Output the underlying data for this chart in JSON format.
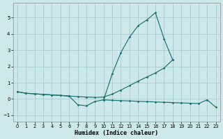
{
  "xlabel": "Humidex (Indice chaleur)",
  "bg_color": "#cce8e8",
  "grid_color": "#aacccc",
  "line_color": "#1a7070",
  "xlim": [
    -0.5,
    23.5
  ],
  "ylim": [
    -1.4,
    5.9
  ],
  "xticks": [
    0,
    1,
    2,
    3,
    4,
    5,
    6,
    7,
    8,
    9,
    10,
    11,
    12,
    13,
    14,
    15,
    16,
    17,
    18,
    19,
    20,
    21,
    22,
    23
  ],
  "yticks": [
    -1,
    0,
    1,
    2,
    3,
    4,
    5
  ],
  "spine_color": "#999999",
  "line_spike_x": [
    10,
    11,
    12,
    13,
    14,
    15,
    16,
    17,
    18
  ],
  "line_spike_y": [
    -0.05,
    1.55,
    2.85,
    3.8,
    4.5,
    4.85,
    5.3,
    3.7,
    2.4
  ],
  "line_rise_x": [
    0,
    1,
    2,
    3,
    4,
    5,
    6,
    7,
    8,
    9,
    10,
    11,
    12,
    13,
    14,
    15,
    16,
    17,
    18
  ],
  "line_rise_y": [
    0.45,
    0.35,
    0.32,
    0.28,
    0.25,
    0.22,
    0.18,
    0.15,
    0.12,
    0.1,
    0.12,
    0.3,
    0.55,
    0.82,
    1.1,
    1.35,
    1.6,
    1.9,
    2.4
  ],
  "line_flat_x": [
    0,
    1,
    2,
    3,
    4,
    5,
    6,
    7,
    8,
    9,
    10,
    11,
    12,
    13,
    14,
    15,
    16,
    17,
    18,
    19,
    20,
    21,
    22,
    23
  ],
  "line_flat_y": [
    0.45,
    0.35,
    0.32,
    0.28,
    0.25,
    0.22,
    0.18,
    -0.35,
    -0.42,
    -0.15,
    -0.05,
    -0.08,
    -0.1,
    -0.12,
    -0.14,
    -0.16,
    -0.18,
    -0.2,
    -0.22,
    -0.24,
    -0.26,
    -0.28,
    -0.05,
    -0.5
  ]
}
